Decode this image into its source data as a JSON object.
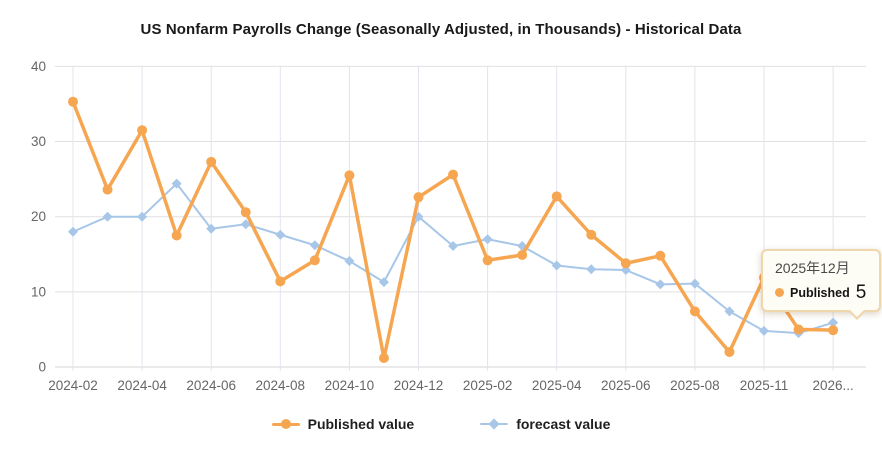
{
  "chart_data": {
    "type": "line",
    "title": "US Nonfarm Payrolls Change (Seasonally Adjusted, in Thousands) - Historical Data",
    "categories": [
      "2024-02",
      "2024-03",
      "2024-04",
      "2024-05",
      "2024-06",
      "2024-07",
      "2024-08",
      "2024-09",
      "2024-10",
      "2024-11",
      "2024-12",
      "2025-01",
      "2025-02",
      "2025-03",
      "2025-04",
      "2025-05",
      "2025-06",
      "2025-07",
      "2025-08",
      "2025-09",
      "2025-11",
      "2025-12",
      "2026-01"
    ],
    "series": [
      {
        "id": "published",
        "name": "Published value",
        "marker": "circle",
        "color": "#f6a651",
        "values": [
          35.3,
          23.6,
          31.5,
          17.5,
          27.3,
          20.6,
          11.4,
          14.2,
          25.5,
          1.2,
          22.6,
          25.6,
          14.2,
          14.9,
          22.7,
          17.6,
          13.8,
          14.8,
          7.4,
          2,
          11.9,
          5,
          4.9
        ]
      },
      {
        "id": "forecast",
        "name": "forecast value",
        "marker": "diamond",
        "color": "#a8c7e8",
        "values": [
          18,
          20,
          20,
          24.4,
          18.4,
          19,
          17.6,
          16.2,
          14.1,
          11.3,
          20,
          16.1,
          17,
          16.1,
          13.5,
          13,
          12.9,
          11,
          11.1,
          7.4,
          4.8,
          4.5,
          5.9
        ]
      }
    ],
    "ylim": [
      0,
      40
    ],
    "yticks": [
      0,
      10,
      20,
      30,
      40
    ],
    "xtick_labels": [
      "2024-02",
      "2024-04",
      "2024-06",
      "2024-08",
      "2024-10",
      "2024-12",
      "2025-02",
      "2025-04",
      "2025-06",
      "2025-08",
      "2025-11",
      "2026..."
    ],
    "grid": true,
    "legend_position": "bottom"
  },
  "tooltip": {
    "date": "2025年12月",
    "series_label": "Published",
    "value": "5"
  }
}
